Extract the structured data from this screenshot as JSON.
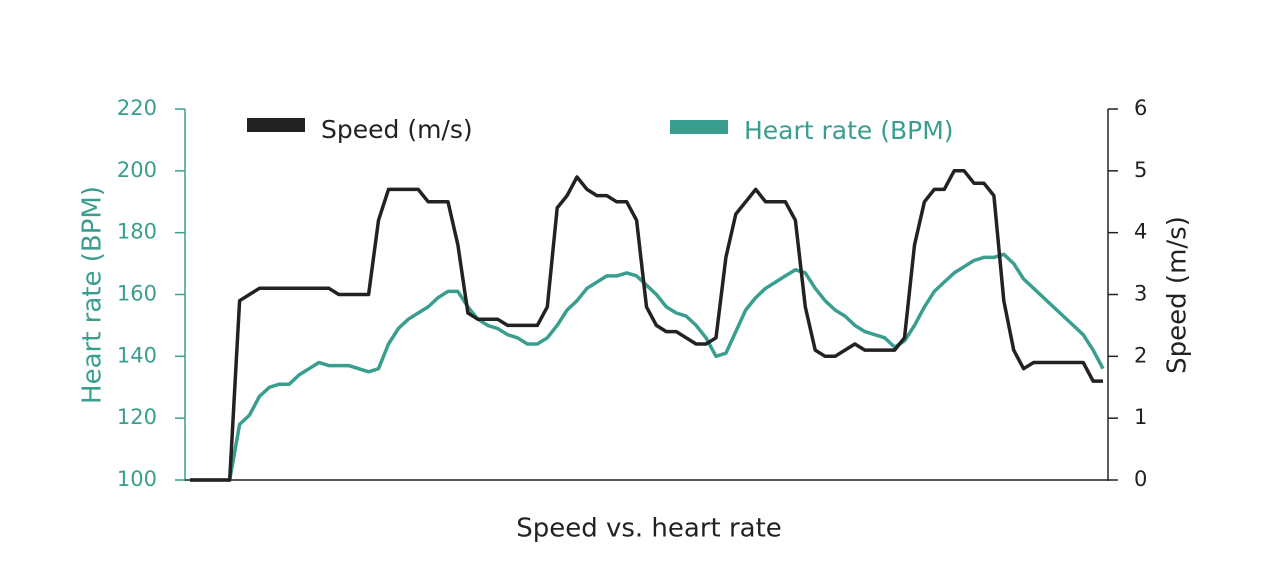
{
  "chart_data": {
    "type": "line",
    "title": "Speed vs. heart rate",
    "ylabel": "Heart rate (BPM)",
    "y2label": "Speed (m/s)",
    "ylim": [
      100,
      220
    ],
    "yticks": [
      100,
      120,
      140,
      160,
      180,
      200,
      220
    ],
    "y2lim": [
      0,
      6
    ],
    "y2ticks": [
      0,
      1,
      2,
      3,
      4,
      5,
      6
    ],
    "series": [
      {
        "name": "Speed (m/s)",
        "color": "#222222",
        "axis": "y2",
        "values": [
          0,
          0,
          0,
          0,
          0,
          2.9,
          3.0,
          3.1,
          3.1,
          3.1,
          3.1,
          3.1,
          3.1,
          3.1,
          3.1,
          3.0,
          3.0,
          3.0,
          3.0,
          4.2,
          4.7,
          4.7,
          4.7,
          4.7,
          4.5,
          4.5,
          4.5,
          3.8,
          2.7,
          2.6,
          2.6,
          2.6,
          2.5,
          2.5,
          2.5,
          2.5,
          2.8,
          4.4,
          4.6,
          4.9,
          4.7,
          4.6,
          4.6,
          4.5,
          4.5,
          4.2,
          2.8,
          2.5,
          2.4,
          2.4,
          2.3,
          2.2,
          2.2,
          2.3,
          3.6,
          4.3,
          4.5,
          4.7,
          4.5,
          4.5,
          4.5,
          4.2,
          2.8,
          2.1,
          2.0,
          2.0,
          2.1,
          2.2,
          2.1,
          2.1,
          2.1,
          2.1,
          2.3,
          3.8,
          4.5,
          4.7,
          4.7,
          5.0,
          5.0,
          4.8,
          4.8,
          4.6,
          2.9,
          2.1,
          1.8,
          1.9,
          1.9,
          1.9,
          1.9,
          1.9,
          1.9,
          1.6,
          1.6
        ]
      },
      {
        "name": "Heart rate (BPM)",
        "color": "#3a9e8f",
        "values": [
          100,
          100,
          100,
          100,
          100,
          118,
          121,
          127,
          130,
          131,
          131,
          134,
          136,
          138,
          137,
          137,
          137,
          136,
          135,
          136,
          144,
          149,
          152,
          154,
          156,
          159,
          161,
          161,
          156,
          152,
          150,
          149,
          147,
          146,
          144,
          144,
          146,
          150,
          155,
          158,
          162,
          164,
          166,
          166,
          167,
          166,
          163,
          160,
          156,
          154,
          153,
          150,
          146,
          140,
          141,
          148,
          155,
          159,
          162,
          164,
          166,
          168,
          167,
          162,
          158,
          155,
          153,
          150,
          148,
          147,
          146,
          143,
          145,
          150,
          156,
          161,
          164,
          167,
          169,
          171,
          172,
          172,
          173,
          170,
          165,
          162,
          159,
          156,
          153,
          150,
          147,
          142,
          136
        ]
      }
    ]
  }
}
